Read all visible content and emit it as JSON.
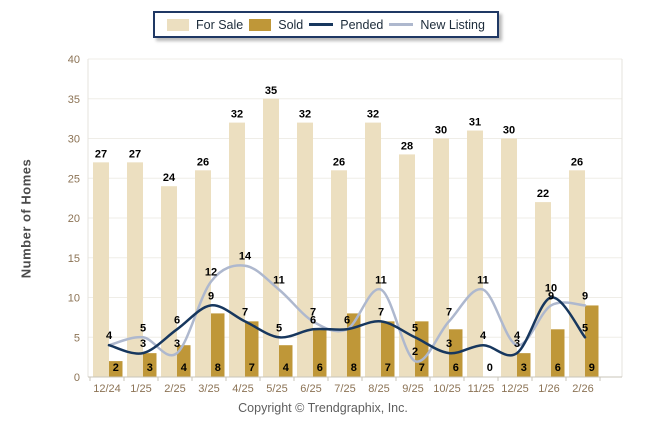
{
  "chart_data": {
    "type": "bar+line combo",
    "categories": [
      "12/24",
      "1/25",
      "2/25",
      "3/25",
      "4/25",
      "5/25",
      "6/25",
      "7/25",
      "8/25",
      "9/25",
      "10/25",
      "11/25",
      "12/25",
      "1/26",
      "2/26"
    ],
    "series": [
      {
        "name": "For Sale",
        "type": "bar",
        "color": "#ECDFC0",
        "values": [
          27,
          27,
          24,
          26,
          32,
          35,
          32,
          26,
          32,
          28,
          30,
          31,
          30,
          22,
          26
        ]
      },
      {
        "name": "Sold",
        "type": "bar",
        "color": "#BF9738",
        "values": [
          2,
          3,
          4,
          8,
          7,
          4,
          6,
          8,
          7,
          7,
          6,
          0,
          3,
          6,
          9
        ]
      },
      {
        "name": "Pended",
        "type": "line",
        "color": "#17375E",
        "values": [
          4,
          3,
          6,
          9,
          7,
          5,
          6,
          6,
          7,
          5,
          3,
          4,
          3,
          10,
          5
        ]
      },
      {
        "name": "New Listing",
        "type": "line",
        "color": "#AEB8CE",
        "values": [
          4,
          5,
          3,
          12,
          14,
          11,
          7,
          6,
          11,
          2,
          7,
          11,
          4,
          9,
          9
        ]
      }
    ],
    "ylabel": "Number of Homes",
    "ylim": [
      0,
      40
    ],
    "ytick_step": 5,
    "yticks": [
      0,
      5,
      10,
      15,
      20,
      25,
      30,
      35,
      40
    ],
    "grid": true,
    "legend_position": "top-center"
  },
  "axis": {
    "tick_label_color": "#8C7355",
    "grid_color": "#EFEDE7",
    "axis_line_color": "#C9C4BA",
    "plot_border_color": "#E6E3DC",
    "value_label_color": "#000000"
  },
  "legend": {
    "border_color": "#1F3864"
  },
  "footer": {
    "copyright": "Copyright © Trendgraphix, Inc."
  }
}
